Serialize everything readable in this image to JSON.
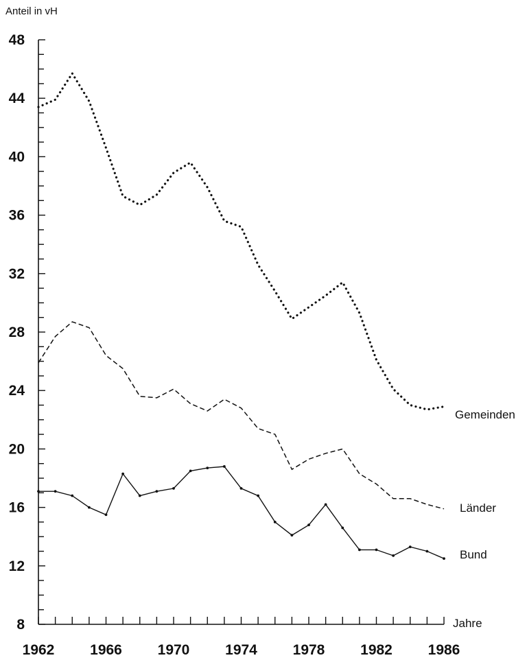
{
  "chart_data": {
    "type": "line",
    "ylabel": "Anteil in vH",
    "xlabel": "Jahre",
    "ylim": [
      8,
      48
    ],
    "yticks": [
      8,
      12,
      16,
      20,
      24,
      28,
      32,
      36,
      40,
      44,
      48
    ],
    "xticks": [
      1962,
      1966,
      1970,
      1974,
      1978,
      1982,
      1986
    ],
    "xlim": [
      1962,
      1986
    ],
    "grid": false,
    "legend": "labels at line ends (right)",
    "x": [
      1962,
      1963,
      1964,
      1965,
      1966,
      1967,
      1968,
      1969,
      1970,
      1971,
      1972,
      1973,
      1974,
      1975,
      1976,
      1977,
      1978,
      1979,
      1980,
      1981,
      1982,
      1983,
      1984,
      1985,
      1986
    ],
    "series": [
      {
        "name": "Gemeinden",
        "style": "dotted",
        "values": [
          43.4,
          43.9,
          45.7,
          43.8,
          40.6,
          37.3,
          36.7,
          37.4,
          38.9,
          39.6,
          37.9,
          35.6,
          35.2,
          32.6,
          30.8,
          28.9,
          29.7,
          30.5,
          31.4,
          29.3,
          26.1,
          24.1,
          23.0,
          22.7,
          22.9
        ]
      },
      {
        "name": "Länder",
        "style": "dashed",
        "values": [
          25.9,
          27.7,
          28.7,
          28.3,
          26.4,
          25.5,
          23.6,
          23.5,
          24.1,
          23.1,
          22.6,
          23.4,
          22.8,
          21.4,
          21.0,
          18.6,
          19.3,
          19.7,
          20.0,
          18.3,
          17.6,
          16.6,
          16.6,
          16.2,
          15.9
        ]
      },
      {
        "name": "Bund",
        "style": "solid",
        "values": [
          17.1,
          17.1,
          16.8,
          16.0,
          15.5,
          18.3,
          16.8,
          17.1,
          17.3,
          18.5,
          18.7,
          18.8,
          17.3,
          16.8,
          15.0,
          14.1,
          14.8,
          16.2,
          14.6,
          13.1,
          13.1,
          12.7,
          13.3,
          13.0,
          12.5
        ]
      }
    ]
  }
}
